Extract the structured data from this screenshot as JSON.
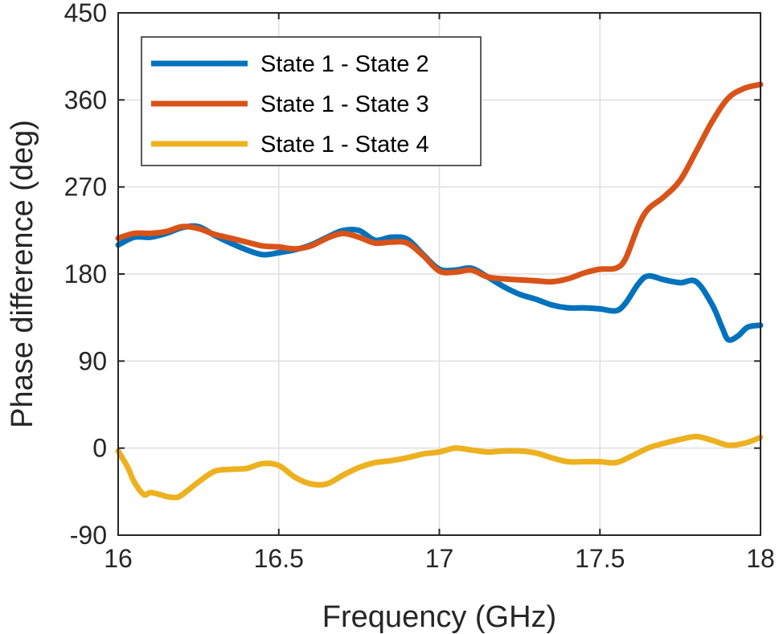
{
  "chart_data": {
    "type": "line",
    "xlabel": "Frequency (GHz)",
    "ylabel": "Phase difference (deg)",
    "xlim": [
      16,
      18
    ],
    "ylim": [
      -90,
      450
    ],
    "xticks": [
      16,
      16.5,
      17,
      17.5,
      18
    ],
    "xtick_labels": [
      "16",
      "16.5",
      "17",
      "17.5",
      "18"
    ],
    "yticks": [
      -90,
      0,
      90,
      180,
      270,
      360,
      450
    ],
    "ytick_labels": [
      "-90",
      "0",
      "90",
      "180",
      "270",
      "360",
      "450"
    ],
    "grid": true,
    "legend_position": "top-left",
    "series": [
      {
        "name": "State 1 - State 2",
        "color": "#0072BD",
        "x": [
          16,
          16.05,
          16.1,
          16.15,
          16.2,
          16.25,
          16.3,
          16.35,
          16.4,
          16.45,
          16.5,
          16.55,
          16.6,
          16.65,
          16.7,
          16.75,
          16.8,
          16.85,
          16.9,
          16.95,
          17,
          17.05,
          17.1,
          17.15,
          17.2,
          17.25,
          17.3,
          17.35,
          17.4,
          17.45,
          17.5,
          17.55,
          17.58,
          17.62,
          17.65,
          17.7,
          17.75,
          17.8,
          17.85,
          17.88,
          17.9,
          17.93,
          17.96,
          18
        ],
        "y": [
          210,
          218,
          218,
          222,
          228,
          229,
          220,
          212,
          205,
          200,
          202,
          205,
          210,
          218,
          225,
          225,
          215,
          218,
          216,
          200,
          185,
          184,
          186,
          177,
          167,
          159,
          154,
          148,
          145,
          145,
          144,
          142,
          150,
          170,
          178,
          174,
          171,
          172,
          148,
          125,
          112,
          116,
          125,
          127
        ]
      },
      {
        "name": "State 1 - State 3",
        "color": "#D95319",
        "x": [
          16,
          16.05,
          16.1,
          16.15,
          16.2,
          16.25,
          16.3,
          16.35,
          16.4,
          16.45,
          16.5,
          16.55,
          16.6,
          16.65,
          16.7,
          16.75,
          16.8,
          16.85,
          16.9,
          16.95,
          17,
          17.05,
          17.1,
          17.15,
          17.2,
          17.25,
          17.3,
          17.35,
          17.4,
          17.45,
          17.5,
          17.55,
          17.58,
          17.62,
          17.65,
          17.7,
          17.75,
          17.8,
          17.85,
          17.9,
          17.95,
          18
        ],
        "y": [
          217,
          222,
          222,
          224,
          229,
          227,
          221,
          217,
          213,
          209,
          208,
          206,
          209,
          217,
          222,
          218,
          212,
          213,
          212,
          199,
          183,
          182,
          184,
          177,
          175,
          174,
          173,
          172,
          175,
          181,
          185,
          186,
          196,
          230,
          247,
          260,
          277,
          307,
          338,
          362,
          372,
          376
        ]
      },
      {
        "name": "State 1 - State 4",
        "color": "#EDB120",
        "x": [
          16,
          16.03,
          16.05,
          16.08,
          16.1,
          16.13,
          16.15,
          16.18,
          16.2,
          16.25,
          16.3,
          16.35,
          16.4,
          16.45,
          16.5,
          16.55,
          16.6,
          16.65,
          16.7,
          16.75,
          16.8,
          16.85,
          16.9,
          16.95,
          17,
          17.05,
          17.1,
          17.15,
          17.2,
          17.25,
          17.3,
          17.35,
          17.4,
          17.45,
          17.5,
          17.55,
          17.6,
          17.65,
          17.7,
          17.75,
          17.8,
          17.85,
          17.9,
          17.95,
          18
        ],
        "y": [
          -3,
          -20,
          -35,
          -48,
          -46,
          -48,
          -50,
          -51,
          -48,
          -35,
          -24,
          -22,
          -21,
          -16,
          -18,
          -30,
          -37,
          -37,
          -28,
          -20,
          -15,
          -13,
          -10,
          -6,
          -4,
          0,
          -2,
          -4,
          -3,
          -3,
          -5,
          -10,
          -14,
          -14,
          -14,
          -15,
          -8,
          0,
          5,
          9,
          12,
          8,
          3,
          5,
          11
        ]
      }
    ]
  }
}
